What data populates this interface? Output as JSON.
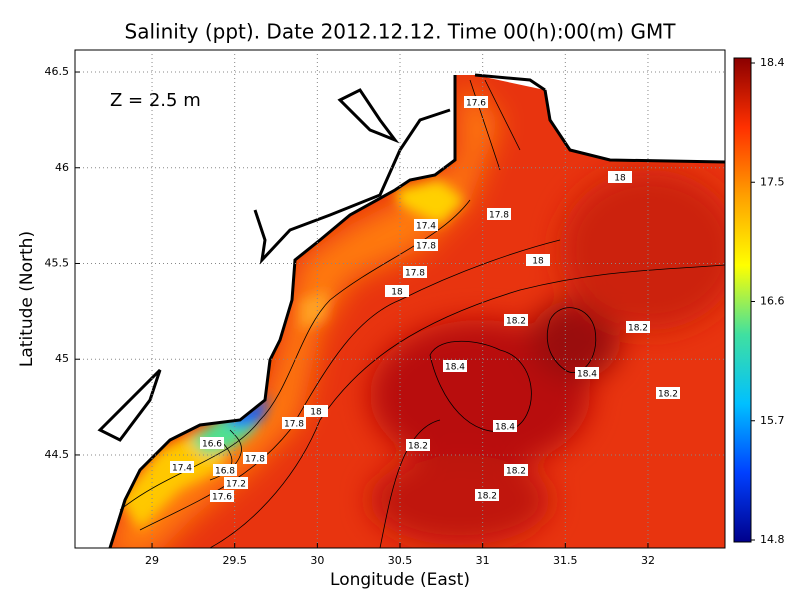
{
  "title": "Salinity (ppt). Date 2012.12.12. Time 00(h):00(m) GMT",
  "annotation": "Z = 2.5 m",
  "x_label": "Longitude (East)",
  "y_label": "Latitude (North)",
  "xlim": [
    28.534,
    32.466
  ],
  "xticks": [
    29,
    29.5,
    30,
    30.5,
    31,
    31.5,
    32
  ],
  "ylim": [
    44.014,
    46.615
  ],
  "yticks": [
    44.5,
    45,
    45.5,
    46,
    46.5
  ],
  "grid": true,
  "colorbar": {
    "range": [
      14.8,
      18.4
    ],
    "ticks": [
      14.8,
      15.7,
      16.6,
      17.5,
      18.4
    ],
    "colors": [
      "#00008b",
      "#0040ff",
      "#00c0ff",
      "#40e0a0",
      "#ffff00",
      "#ffa000",
      "#ff3000",
      "#8b0000"
    ]
  },
  "contour_labels": [
    17.6,
    18,
    17.4,
    17.8,
    17.8,
    18,
    17.8,
    18,
    18.2,
    18.2,
    18.4,
    18.4,
    18.2,
    18,
    17.8,
    18.4,
    18.2,
    16.6,
    17.8,
    17.4,
    16.8,
    18.2,
    17.2,
    17.6,
    18.2
  ]
}
